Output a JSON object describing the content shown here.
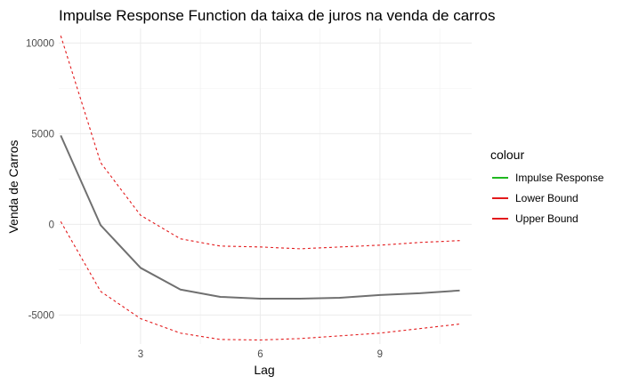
{
  "chart_data": {
    "type": "line",
    "title": "Impulse Response Function da taixa de juros na venda de carros",
    "xlabel": "Lag",
    "ylabel": "Venda de Carros",
    "x": [
      1,
      2,
      3,
      4,
      5,
      6,
      7,
      8,
      9,
      10,
      11
    ],
    "xlim": [
      0.95,
      11.3
    ],
    "ylim": [
      -6600,
      10800
    ],
    "x_ticks": [
      3,
      6,
      9
    ],
    "y_ticks": [
      -5000,
      0,
      5000,
      10000
    ],
    "grid": true,
    "legend": {
      "title": "colour",
      "position": "right",
      "entries": [
        {
          "label": "Impulse Response",
          "color": "#1fb81f"
        },
        {
          "label": "Lower Bound",
          "color": "#e31a1c"
        },
        {
          "label": "Upper Bound",
          "color": "#e31a1c"
        }
      ]
    },
    "series": [
      {
        "name": "Impulse Response",
        "color": "#707070",
        "dash": "solid",
        "values": [
          4900,
          -50,
          -2400,
          -3600,
          -4000,
          -4100,
          -4100,
          -4050,
          -3900,
          -3800,
          -3650
        ]
      },
      {
        "name": "Lower Bound",
        "color": "#e31a1c",
        "dash": "dashed",
        "values": [
          150,
          -3700,
          -5200,
          -6000,
          -6350,
          -6380,
          -6300,
          -6150,
          -6000,
          -5750,
          -5500
        ]
      },
      {
        "name": "Upper Bound",
        "color": "#e31a1c",
        "dash": "dashed",
        "values": [
          10400,
          3400,
          500,
          -800,
          -1200,
          -1250,
          -1350,
          -1250,
          -1150,
          -1000,
          -900
        ]
      }
    ]
  }
}
